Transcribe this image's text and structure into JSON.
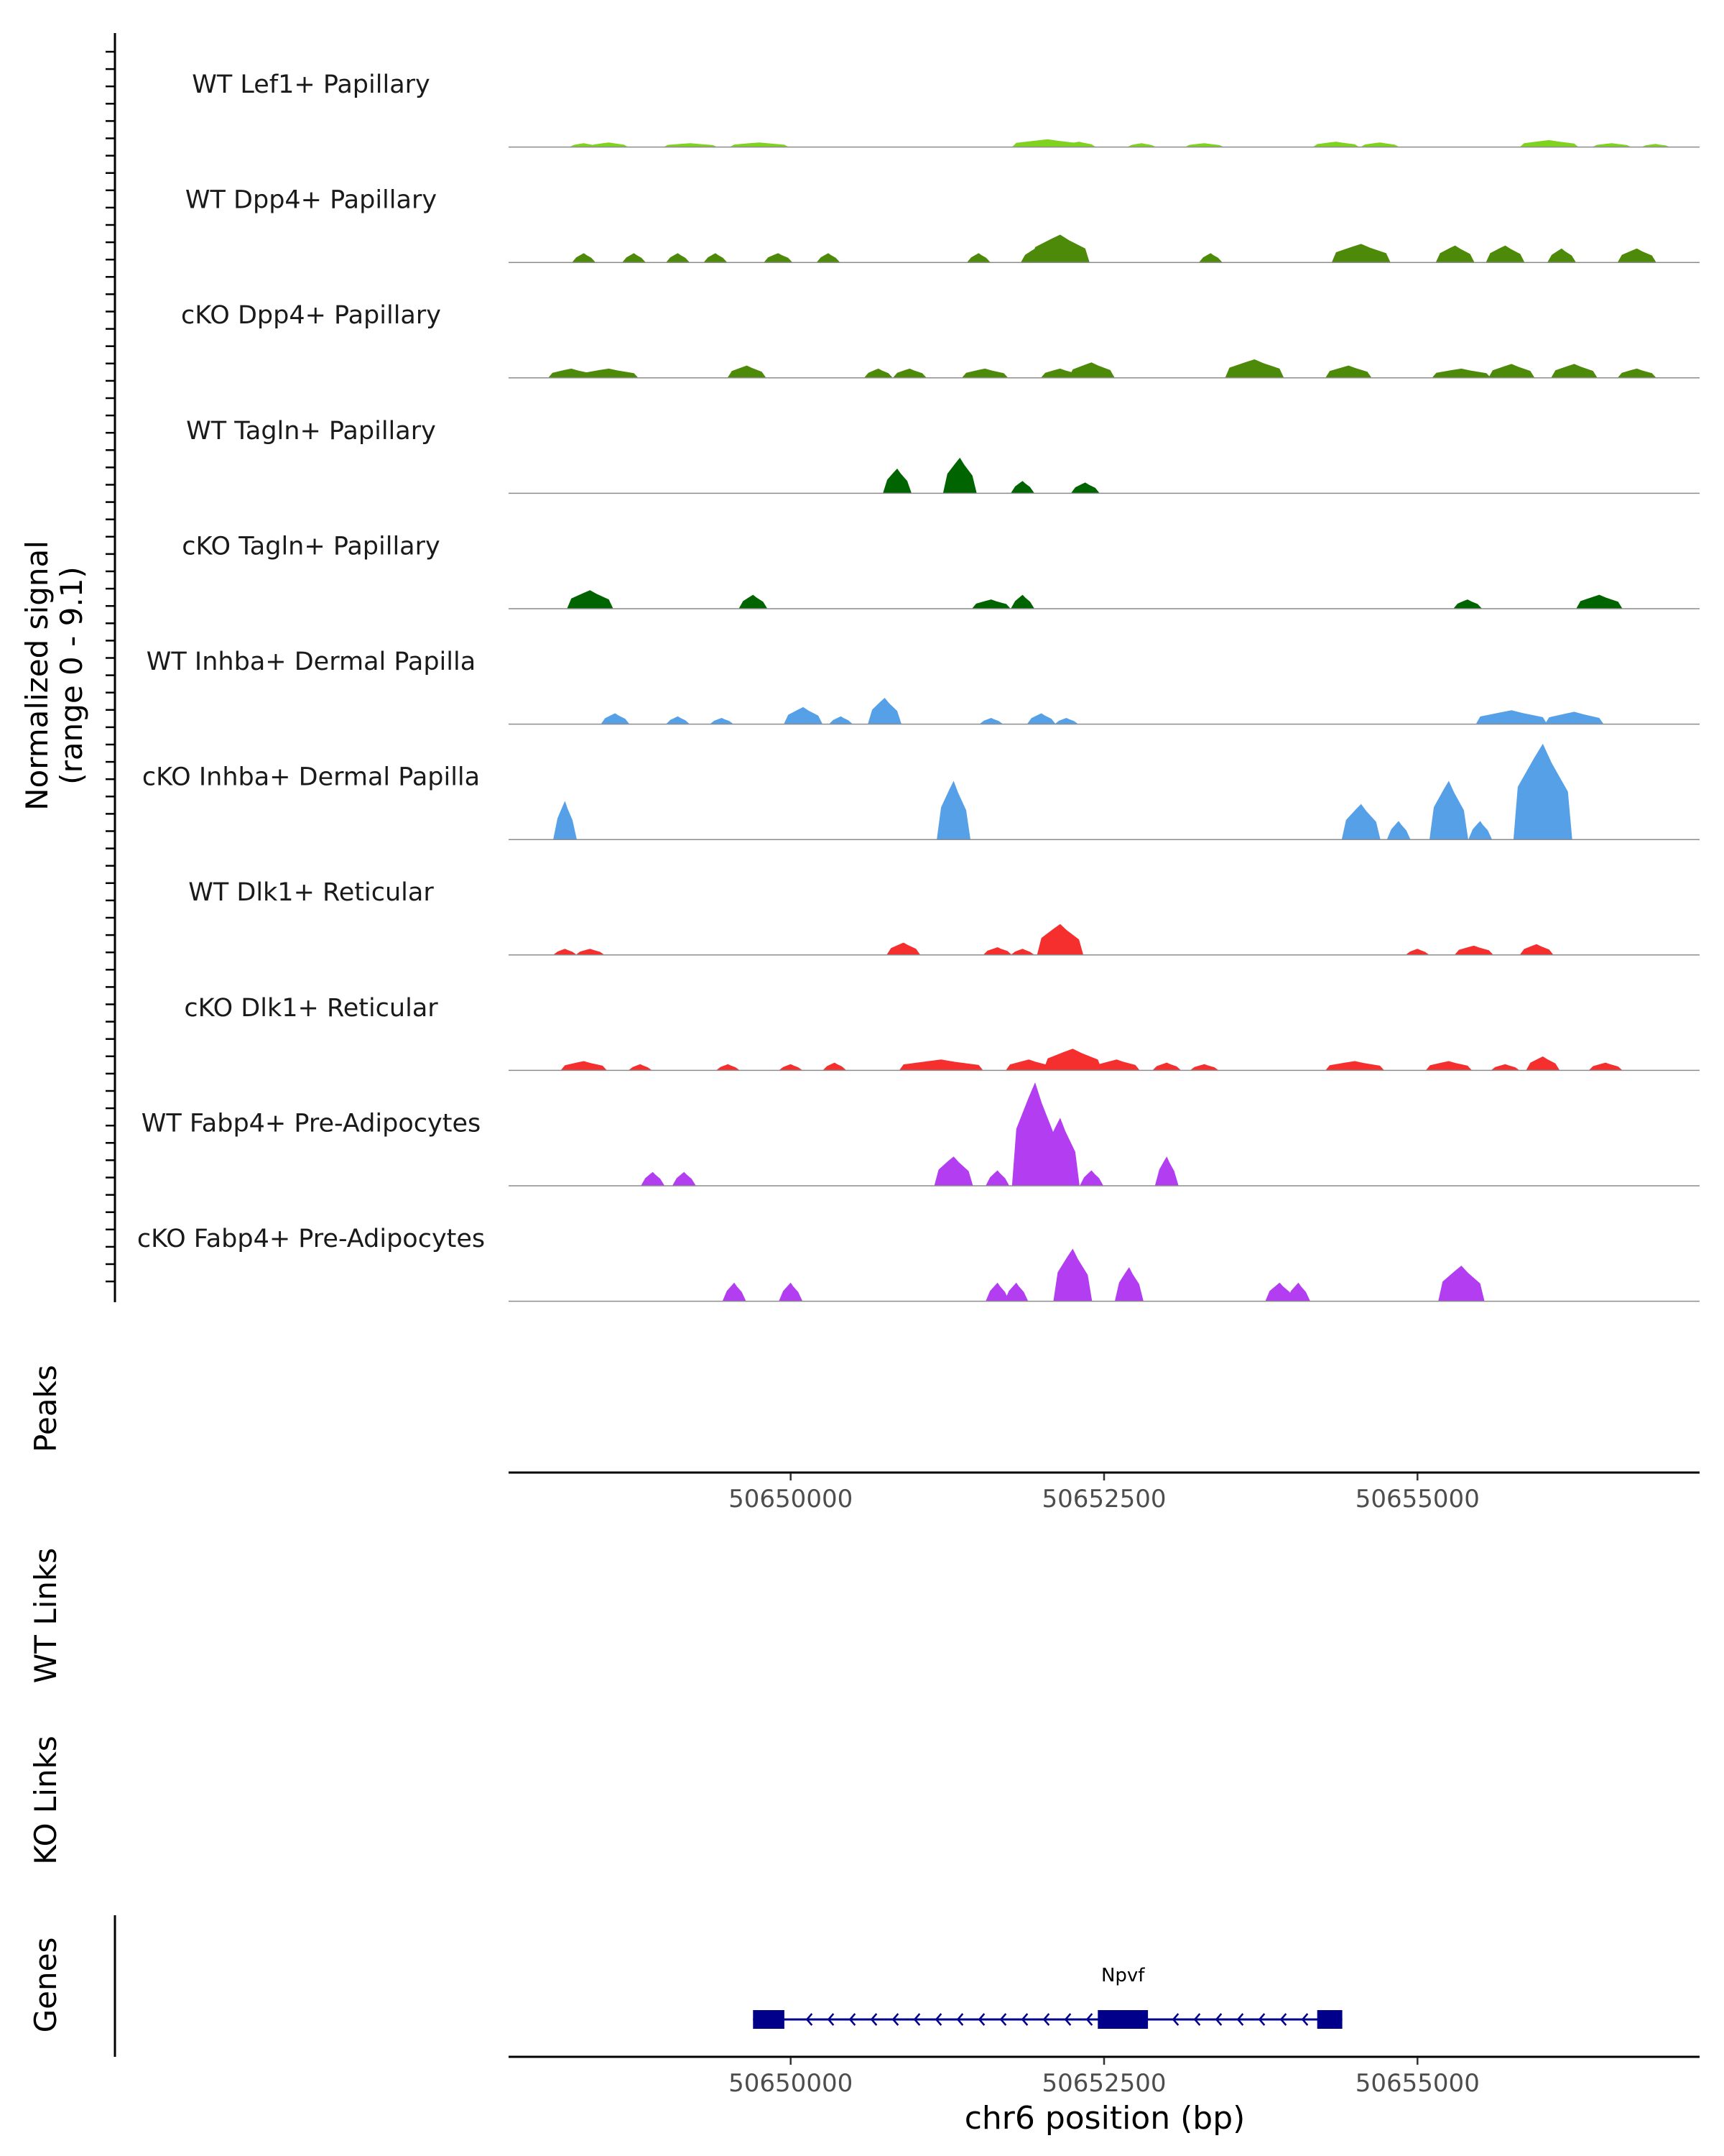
{
  "chart_data": {
    "type": "area",
    "title": "",
    "xlabel": "chr6 position (bp)",
    "x_ticks": [
      50650000,
      50652500,
      50655000
    ],
    "xlim": [
      50647750,
      50657250
    ],
    "signal_axis_label": [
      "Normalized signal",
      "(range 0 - 9.1)"
    ],
    "ylim": [
      0,
      9.1
    ],
    "track_labels": {
      "peaks": "Peaks",
      "wt_links": "WT Links",
      "ko_links": "KO Links",
      "genes": "Genes"
    },
    "gene": {
      "name": "Npvf",
      "start": 50649700,
      "end": 50654400,
      "strand": "-",
      "exons": [
        [
          50649700,
          50649950
        ],
        [
          50652450,
          50652850
        ],
        [
          50654200,
          50654400
        ]
      ],
      "color": "#00008b"
    },
    "series": [
      {
        "name": "WT Lef1+ Papillary",
        "color": "#7fd31f",
        "peaks": [
          [
            50648350,
            80,
            0.25
          ],
          [
            50648550,
            120,
            0.3
          ],
          [
            50649200,
            180,
            0.25
          ],
          [
            50649750,
            200,
            0.3
          ],
          [
            50652050,
            250,
            0.5
          ],
          [
            50652300,
            100,
            0.35
          ],
          [
            50652800,
            80,
            0.25
          ],
          [
            50653300,
            120,
            0.25
          ],
          [
            50654350,
            150,
            0.35
          ],
          [
            50654700,
            120,
            0.3
          ],
          [
            50656050,
            200,
            0.45
          ],
          [
            50656550,
            120,
            0.25
          ],
          [
            50656900,
            80,
            0.2
          ]
        ]
      },
      {
        "name": "WT Dpp4+ Papillary",
        "color": "#4d8a0a",
        "peaks": [
          [
            50648350,
            60,
            0.6
          ],
          [
            50648750,
            60,
            0.6
          ],
          [
            50649100,
            60,
            0.6
          ],
          [
            50649400,
            60,
            0.6
          ],
          [
            50649900,
            80,
            0.6
          ],
          [
            50650300,
            60,
            0.6
          ],
          [
            50651500,
            60,
            0.6
          ],
          [
            50651950,
            80,
            0.9
          ],
          [
            50652150,
            200,
            1.8
          ],
          [
            50653350,
            60,
            0.6
          ],
          [
            50654550,
            200,
            1.2
          ],
          [
            50655300,
            120,
            1.1
          ],
          [
            50655700,
            120,
            1.1
          ],
          [
            50656150,
            80,
            0.9
          ],
          [
            50656750,
            120,
            0.9
          ]
        ]
      },
      {
        "name": "cKO Dpp4+ Papillary",
        "color": "#4d8a0a",
        "peaks": [
          [
            50648250,
            150,
            0.6
          ],
          [
            50648550,
            200,
            0.6
          ],
          [
            50649650,
            120,
            0.8
          ],
          [
            50650700,
            80,
            0.6
          ],
          [
            50650950,
            100,
            0.6
          ],
          [
            50651550,
            150,
            0.6
          ],
          [
            50652150,
            120,
            0.6
          ],
          [
            50652400,
            150,
            1.0
          ],
          [
            50653700,
            200,
            1.2
          ],
          [
            50654450,
            150,
            0.8
          ],
          [
            50655350,
            200,
            0.6
          ],
          [
            50655750,
            150,
            0.9
          ],
          [
            50656250,
            150,
            0.9
          ],
          [
            50656750,
            120,
            0.6
          ]
        ]
      },
      {
        "name": "WT Tagln+ Papillary",
        "color": "#006400",
        "peaks": [
          [
            50650850,
            80,
            1.6
          ],
          [
            50651350,
            100,
            2.3
          ],
          [
            50651850,
            60,
            0.8
          ],
          [
            50652350,
            80,
            0.7
          ]
        ]
      },
      {
        "name": "cKO Tagln+ Papillary",
        "color": "#006400",
        "peaks": [
          [
            50648400,
            150,
            1.2
          ],
          [
            50649700,
            80,
            0.9
          ],
          [
            50651600,
            120,
            0.6
          ],
          [
            50651850,
            60,
            0.9
          ],
          [
            50655400,
            80,
            0.6
          ],
          [
            50656450,
            150,
            0.9
          ]
        ]
      },
      {
        "name": "WT Inhba+ Dermal Papilla",
        "color": "#56a0e8",
        "peaks": [
          [
            50648600,
            80,
            0.7
          ],
          [
            50649100,
            60,
            0.5
          ],
          [
            50649450,
            60,
            0.4
          ],
          [
            50650100,
            120,
            1.1
          ],
          [
            50650400,
            60,
            0.5
          ],
          [
            50650750,
            100,
            1.7
          ],
          [
            50651600,
            60,
            0.4
          ],
          [
            50652000,
            80,
            0.7
          ],
          [
            50652200,
            60,
            0.4
          ],
          [
            50655750,
            250,
            0.9
          ],
          [
            50656250,
            200,
            0.8
          ]
        ]
      },
      {
        "name": "cKO Inhba+ Dermal Papilla",
        "color": "#56a0e8",
        "peaks": [
          [
            50648200,
            60,
            2.5
          ],
          [
            50651300,
            100,
            3.8
          ],
          [
            50654550,
            120,
            2.3
          ],
          [
            50654850,
            60,
            1.2
          ],
          [
            50655250,
            120,
            3.8
          ],
          [
            50655500,
            60,
            1.2
          ],
          [
            50656000,
            200,
            6.2
          ]
        ]
      },
      {
        "name": "WT Dlk1+ Reticular",
        "color": "#f52e2e",
        "peaks": [
          [
            50648200,
            60,
            0.4
          ],
          [
            50648400,
            80,
            0.4
          ],
          [
            50650900,
            100,
            0.8
          ],
          [
            50651650,
            80,
            0.5
          ],
          [
            50651850,
            60,
            0.4
          ],
          [
            50652150,
            150,
            2.0
          ],
          [
            50655000,
            60,
            0.4
          ],
          [
            50655450,
            120,
            0.6
          ],
          [
            50655950,
            100,
            0.7
          ]
        ]
      },
      {
        "name": "cKO Dlk1+ Reticular",
        "color": "#f52e2e",
        "peaks": [
          [
            50648350,
            150,
            0.6
          ],
          [
            50648800,
            60,
            0.4
          ],
          [
            50649500,
            60,
            0.4
          ],
          [
            50650000,
            60,
            0.4
          ],
          [
            50650350,
            60,
            0.5
          ],
          [
            50651200,
            300,
            0.7
          ],
          [
            50651900,
            150,
            0.7
          ],
          [
            50652250,
            200,
            1.4
          ],
          [
            50652600,
            150,
            0.7
          ],
          [
            50653000,
            80,
            0.5
          ],
          [
            50653300,
            80,
            0.4
          ],
          [
            50654500,
            200,
            0.6
          ],
          [
            50655250,
            150,
            0.6
          ],
          [
            50655700,
            80,
            0.4
          ],
          [
            50656000,
            100,
            0.9
          ],
          [
            50656500,
            100,
            0.5
          ]
        ]
      },
      {
        "name": "WT Fabp4+ Pre-Adipocytes",
        "color": "#b33df0",
        "peaks": [
          [
            50648900,
            60,
            0.9
          ],
          [
            50649150,
            60,
            0.9
          ],
          [
            50651300,
            120,
            1.9
          ],
          [
            50651650,
            60,
            1.0
          ],
          [
            50651950,
            150,
            6.7
          ],
          [
            50652150,
            120,
            4.4
          ],
          [
            50652400,
            60,
            1.0
          ],
          [
            50653000,
            60,
            1.9
          ]
        ]
      },
      {
        "name": "cKO Fabp4+ Pre-Adipocytes",
        "color": "#b33df0",
        "peaks": [
          [
            50649550,
            60,
            1.2
          ],
          [
            50650000,
            60,
            1.2
          ],
          [
            50651650,
            60,
            1.2
          ],
          [
            50651800,
            60,
            1.2
          ],
          [
            50652250,
            120,
            3.4
          ],
          [
            50652700,
            80,
            2.2
          ],
          [
            50653900,
            80,
            1.2
          ],
          [
            50654050,
            60,
            1.2
          ],
          [
            50655350,
            150,
            2.3
          ]
        ]
      }
    ]
  }
}
